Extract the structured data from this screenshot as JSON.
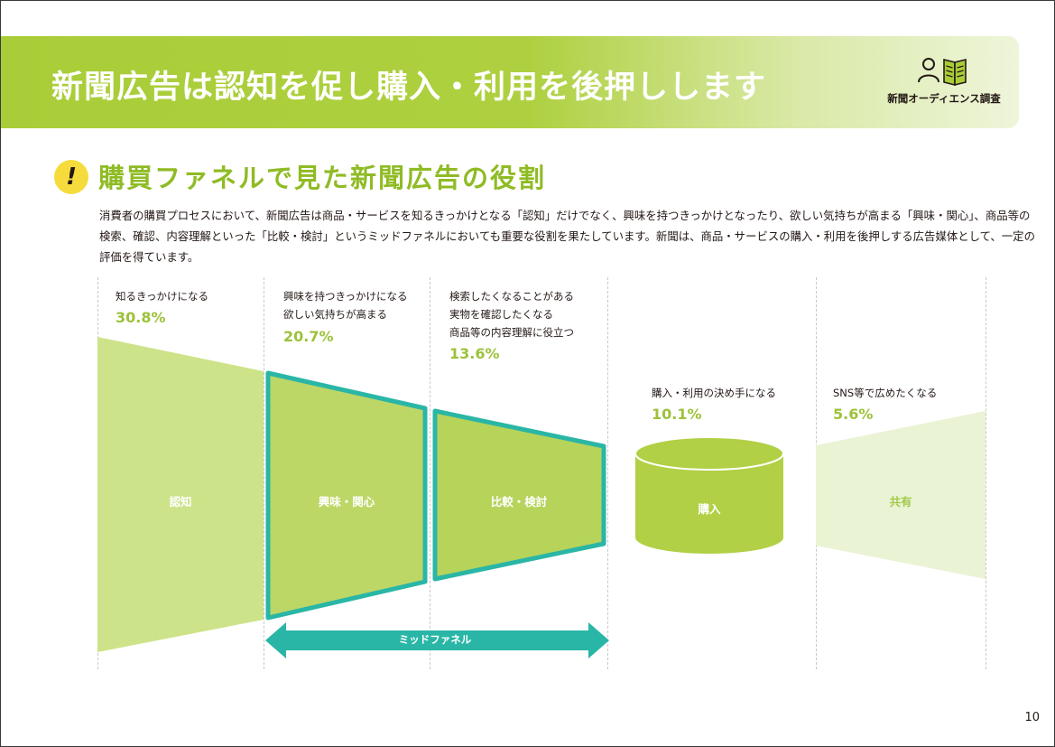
{
  "header": {
    "title": "新聞広告は認知を促し購入・利用を後押しします",
    "logo_text": "新聞オーディエンス調査",
    "logo_icons": [
      "person-icon",
      "open-book-icon"
    ]
  },
  "section": {
    "icon": "exclamation-icon",
    "icon_glyph": "!",
    "title": "購買ファネルで見た新聞広告の役割",
    "intro_lines": [
      "消費者の購買プロセスにおいて、新聞広告は商品・サービスを知るきっかけとなる「認知」だけでなく、興味を持つきっかけとなったり、欲しい気持ちが高まる「興味・関心」、商品等の",
      "検索、確認、内容理解といった「比較・検討」というミッドファネルにおいても重要な役割を果たしています。新聞は、商品・サービスの購入・利用を後押しする広告媒体として、一定の",
      "評価を得ています。"
    ]
  },
  "funnel": {
    "stages": [
      {
        "label": "認知",
        "desc_lines": [
          "知るきっかけになる"
        ],
        "percent": "30.8%",
        "value": 30.8
      },
      {
        "label": "興味・関心",
        "desc_lines": [
          "興味を持つきっかけになる",
          "欲しい気持ちが高まる"
        ],
        "percent": "20.7%",
        "value": 20.7
      },
      {
        "label": "比較・検討",
        "desc_lines": [
          "検索したくなることがある",
          "実物を確認したくなる",
          "商品等の内容理解に役立つ"
        ],
        "percent": "13.6%",
        "value": 13.6
      },
      {
        "label": "購入",
        "desc_lines": [
          "購入・利用の決め手になる"
        ],
        "percent": "10.1%",
        "value": 10.1
      },
      {
        "label": "共有",
        "desc_lines": [
          "SNS等で広めたくなる"
        ],
        "percent": "5.6%",
        "value": 5.6
      }
    ],
    "mid_funnel_label": "ミッドファネル",
    "colors": {
      "awareness": "#cde389",
      "interest": "#bdd766",
      "compare": "#b6d35a",
      "purchase": "#b1d045",
      "share": "#eaf3d4",
      "outline": "#2ab6a6",
      "percent": "#9cc23a",
      "banner": "#a9cd38"
    }
  },
  "page_number": "10"
}
